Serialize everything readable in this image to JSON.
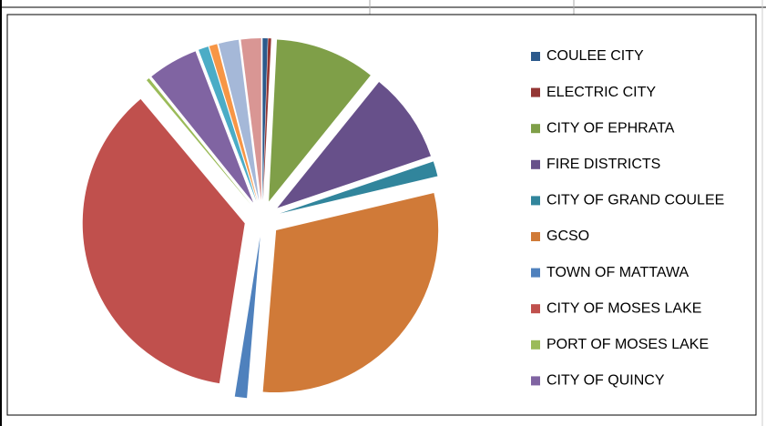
{
  "chart_data": {
    "type": "pie",
    "categories": [
      "COULEE CITY",
      "ELECTRIC CITY",
      "CITY OF EPHRATA",
      "FIRE DISTRICTS",
      "CITY OF GRAND COULEE",
      "GCSO",
      "TOWN OF MATTAWA",
      "CITY OF MOSES LAKE",
      "PORT OF MOSES LAKE",
      "CITY OF QUINCY",
      null,
      null,
      null,
      null
    ],
    "values": [
      0.5,
      0.3,
      10,
      9,
      1.5,
      30,
      1.2,
      36.4,
      0.3,
      5,
      1,
      0.8,
      2,
      2
    ],
    "colors": [
      "#2c5a8c",
      "#943634",
      "#7f9f48",
      "#67508a",
      "#31859c",
      "#d07a38",
      "#4f81bd",
      "#c0504d",
      "#9bbb59",
      "#8064a2",
      "#4bacc6",
      "#f79646",
      "#a5b8d8",
      "#d99694"
    ],
    "legend": "right"
  }
}
